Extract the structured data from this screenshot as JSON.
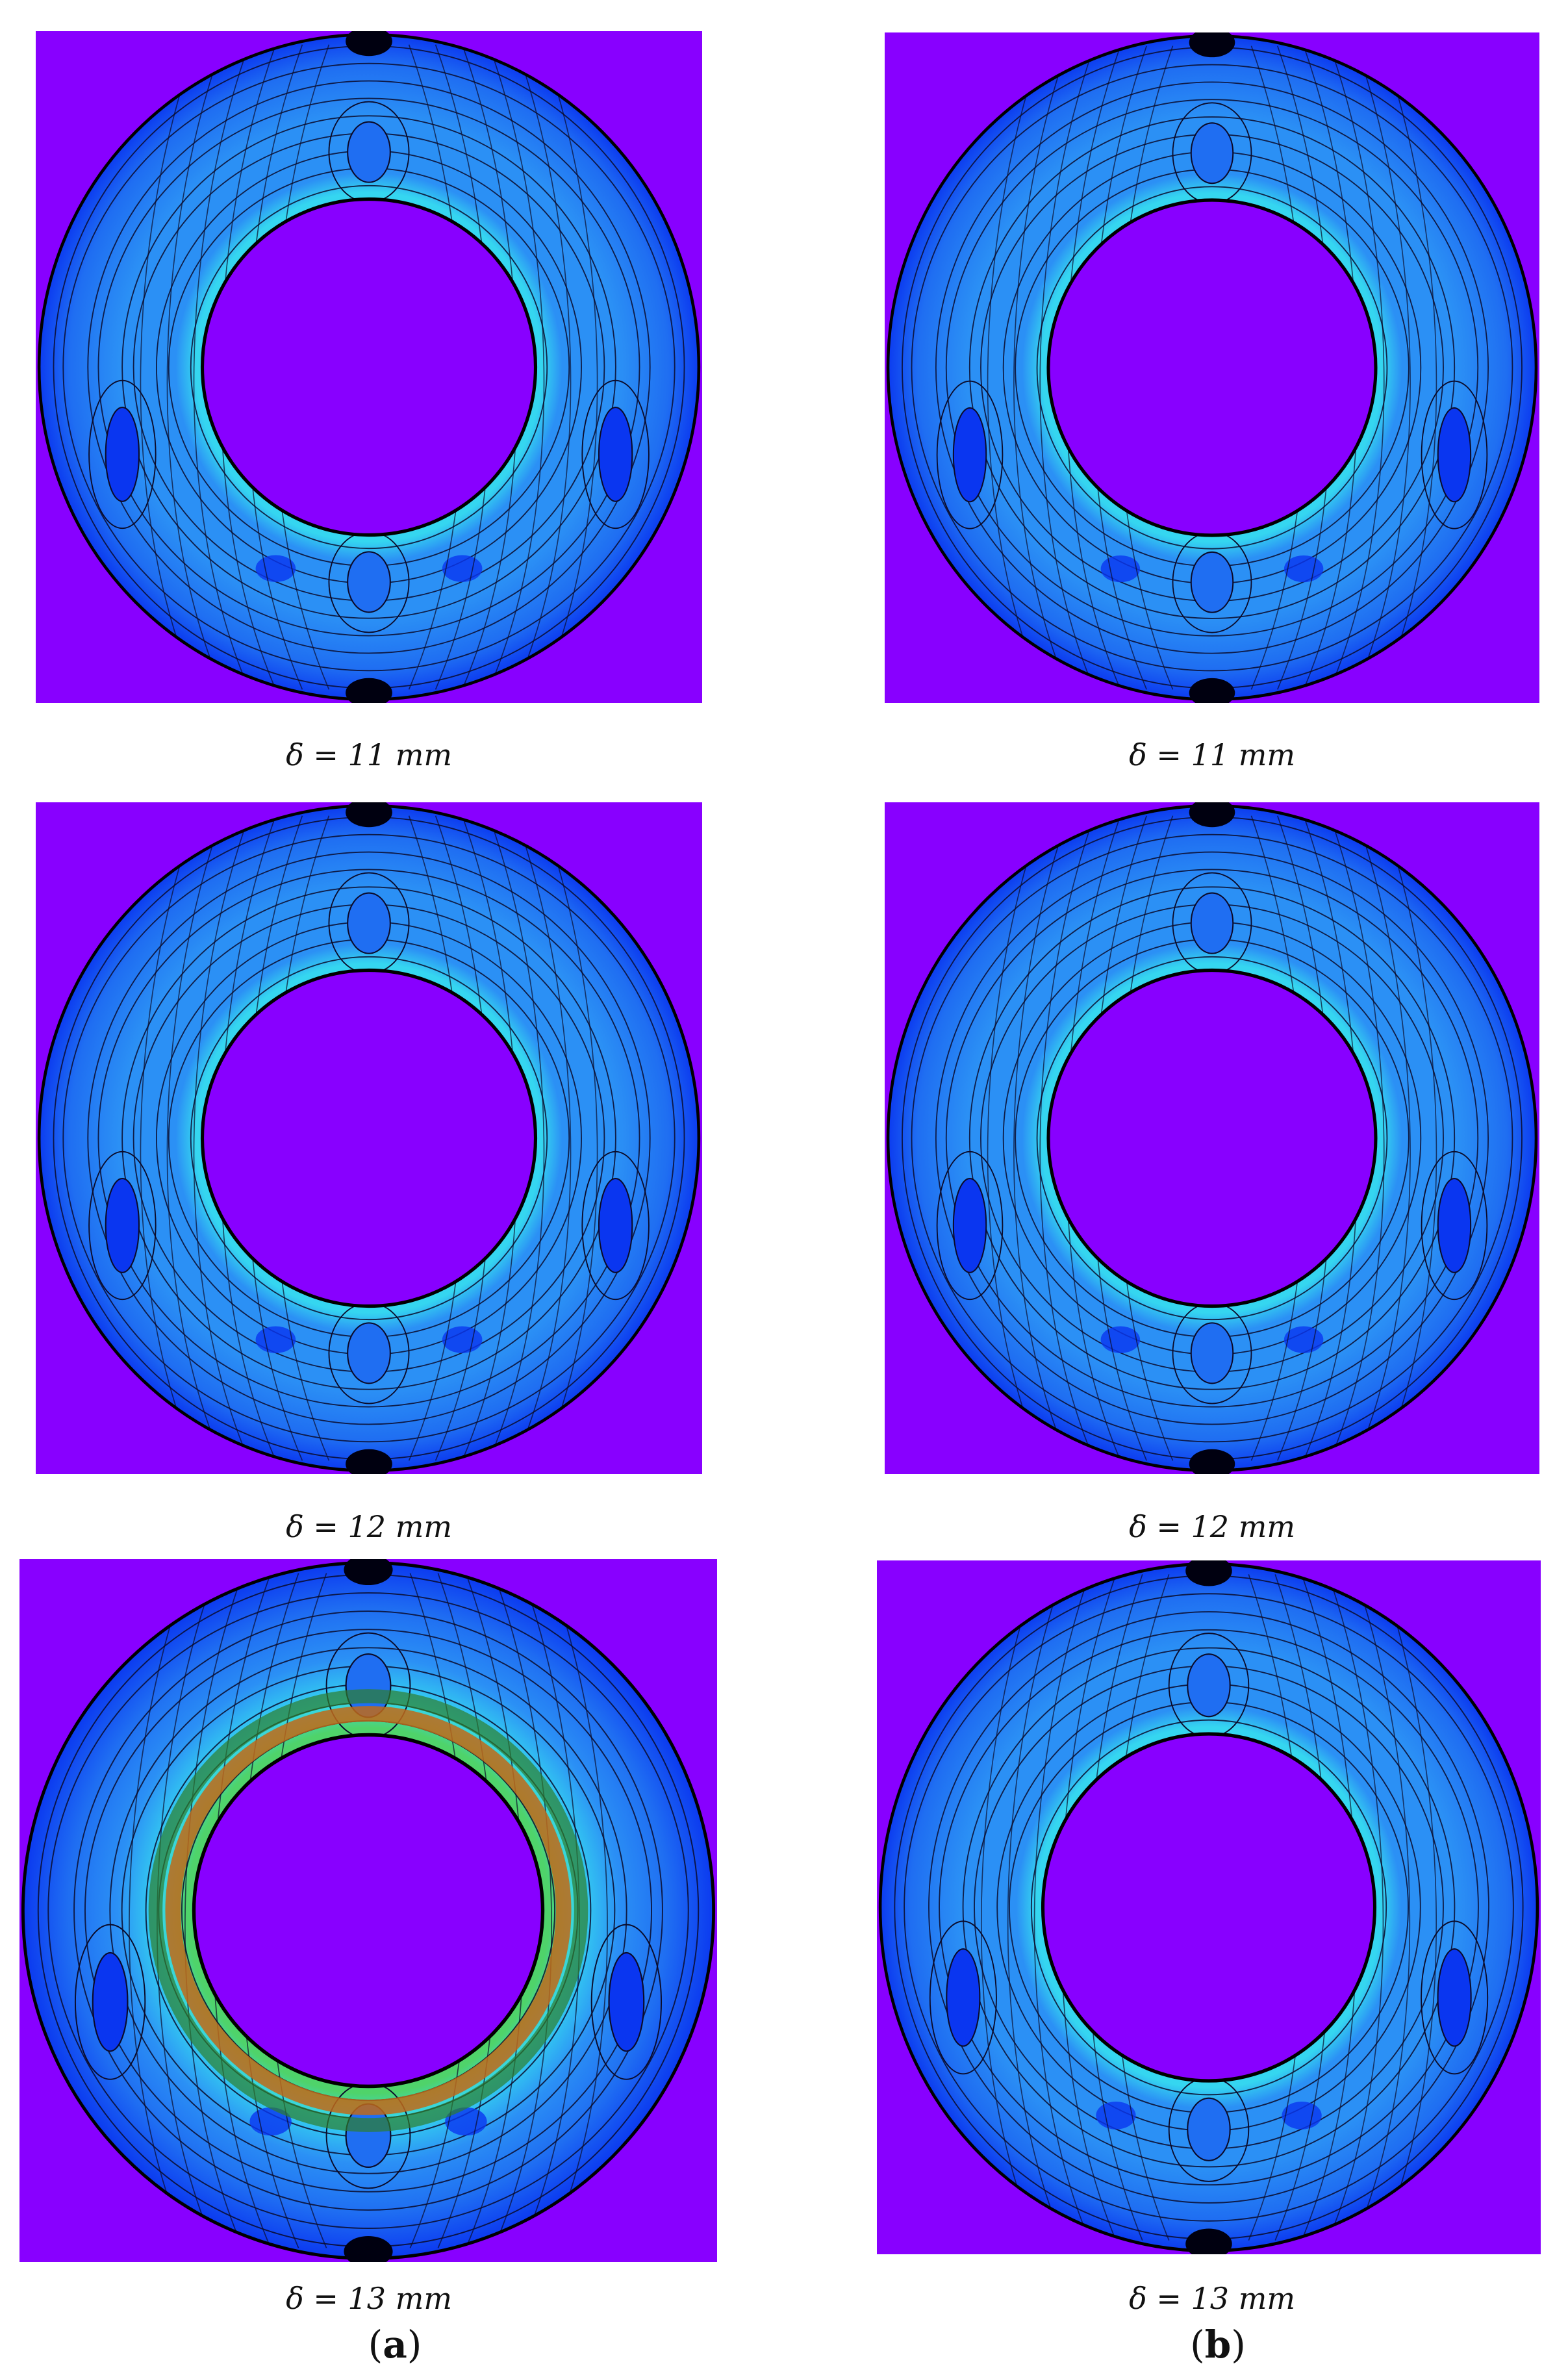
{
  "figure": {
    "columns": [
      {
        "label_open": "(",
        "label_letter": "a",
        "label_close": ")"
      },
      {
        "label_open": "(",
        "label_letter": "b",
        "label_close": ")"
      }
    ],
    "rows": [
      {
        "caption_a": "δ = 11 mm",
        "caption_b": "δ = 11 mm"
      },
      {
        "caption_a": "δ = 12 mm",
        "caption_b": "δ = 12 mm"
      },
      {
        "caption_a": "δ = 13 mm",
        "caption_b": "δ = 13 mm"
      }
    ],
    "colors": {
      "background_violet": "#8800ff",
      "outer_blue": "#0a36f0",
      "mid_blue": "#1f6ef2",
      "light_blue": "#2b90f5",
      "cyan": "#35d6f0",
      "green": "#4fd36a",
      "contour_line": "#0b0b2a"
    }
  }
}
